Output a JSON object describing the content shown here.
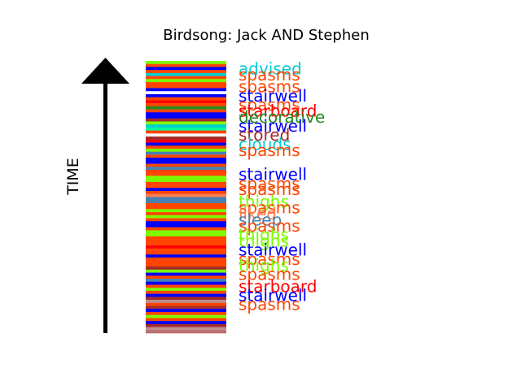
{
  "chart_data": {
    "type": "bar",
    "title": "Birdsong: Jack AND Stephen",
    "ylabel": "TIME",
    "xlabel": "",
    "stripe_count": 90,
    "stripe_colors": [
      "#7cfc00",
      "#ff4500",
      "#0000ff",
      "#ff4500",
      "#00ced1",
      "#ff4500",
      "#7cfc00",
      "#ff4500",
      "#ff4500",
      "#0000ff",
      "#ffffff",
      "#0000ff",
      "#ff4500",
      "#ff0000",
      "#ff4500",
      "#228b22",
      "#ff4500",
      "#0000ff",
      "#0000ff",
      "#a52a2a",
      "#7cfc00",
      "#00ced1",
      "#00fa9a",
      "#ff4500",
      "#ffffff",
      "#a52a2a",
      "#ff0000",
      "#0000ff",
      "#ff4500",
      "#7cfc00",
      "#4682b4",
      "#ff4500",
      "#0000ff",
      "#0000ff",
      "#ff4500",
      "#4682b4",
      "#ff4500",
      "#ff4500",
      "#7cfc00",
      "#7cfc00",
      "#ff4500",
      "#ff4500",
      "#0000ff",
      "#ff4500",
      "#ff7f50",
      "#4682b4",
      "#4682b4",
      "#ff4500",
      "#ff4500",
      "#7cfc00",
      "#ff4500",
      "#7cfc00",
      "#ff4500",
      "#0000ff",
      "#0000ff",
      "#ff4500",
      "#7cfc00",
      "#7cfc00",
      "#ff4500",
      "#ff4500",
      "#ff4500",
      "#ff0000",
      "#ff4500",
      "#ff4500",
      "#0000ff",
      "#ff4500",
      "#ff4500",
      "#ff4500",
      "#a52a2a",
      "#7cfc00",
      "#0000ff",
      "#ff4500",
      "#4682b4",
      "#0000ff",
      "#ff4500",
      "#7cfc00",
      "#ff4500",
      "#0000ff",
      "#a52a2a",
      "#bc8f8f",
      "#ff4500",
      "#a52a2a",
      "#0000ff",
      "#ff4500",
      "#7cfc00",
      "#ff4500",
      "#0000ff",
      "#a52a2a",
      "#bc8f8f",
      "#bc6f6f"
    ],
    "word_labels": [
      {
        "text": "advised",
        "color": "#00ced1",
        "stripe": 2
      },
      {
        "text": "spasms",
        "color": "#ff4500",
        "stripe": 4
      },
      {
        "text": "spasms",
        "color": "#ff4500",
        "stripe": 8
      },
      {
        "text": "stairwell",
        "color": "#0000ff",
        "stripe": 11
      },
      {
        "text": "spasms",
        "color": "#ff4500",
        "stripe": 14
      },
      {
        "text": "starboard",
        "color": "#ff0000",
        "stripe": 16
      },
      {
        "text": "decorative",
        "color": "#228b22",
        "stripe": 18
      },
      {
        "text": "stairwell",
        "color": "#0000ff",
        "stripe": 21
      },
      {
        "text": "stored",
        "color": "#a52a2a",
        "stripe": 24
      },
      {
        "text": "clouds",
        "color": "#00ced1",
        "stripe": 27
      },
      {
        "text": "spasms",
        "color": "#ff4500",
        "stripe": 29
      },
      {
        "text": "stairwell",
        "color": "#0000ff",
        "stripe": 37
      },
      {
        "text": "spasms",
        "color": "#ff4500",
        "stripe": 40
      },
      {
        "text": "spasms",
        "color": "#ff4500",
        "stripe": 42
      },
      {
        "text": "thighs",
        "color": "#7cfc00",
        "stripe": 46
      },
      {
        "text": "spasms",
        "color": "#ff4500",
        "stripe": 48
      },
      {
        "text": "liked",
        "color": "#ff7f50",
        "stripe": 50
      },
      {
        "text": "sleep",
        "color": "#4682b4",
        "stripe": 52
      },
      {
        "text": "spasms",
        "color": "#ff4500",
        "stripe": 54
      },
      {
        "text": "thighs",
        "color": "#7cfc00",
        "stripe": 57
      },
      {
        "text": "thighs",
        "color": "#7cfc00",
        "stripe": 59
      },
      {
        "text": "stairwell",
        "color": "#0000ff",
        "stripe": 62
      },
      {
        "text": "spasms",
        "color": "#ff4500",
        "stripe": 65
      },
      {
        "text": "thighs",
        "color": "#7cfc00",
        "stripe": 67
      },
      {
        "text": "spasms",
        "color": "#ff4500",
        "stripe": 70
      },
      {
        "text": "starboard",
        "color": "#ff0000",
        "stripe": 74
      },
      {
        "text": "stairwell",
        "color": "#0000ff",
        "stripe": 77
      },
      {
        "text": "spasms",
        "color": "#ff4500",
        "stripe": 80
      }
    ],
    "axis_arrow": "up"
  }
}
